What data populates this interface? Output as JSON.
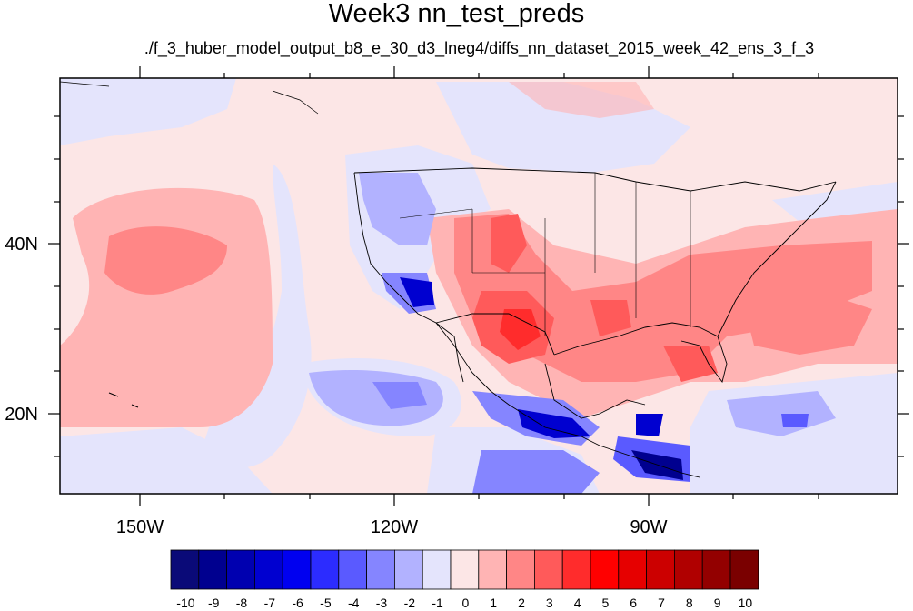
{
  "title": "Week3 nn_test_preds",
  "subtitle": "./f_3_huber_model_output_b8_e_30_d3_lneg4/diffs_nn_dataset_2015_week_42_ens_3_f_3",
  "axes": {
    "lat_labels": [
      "40N",
      "20N"
    ],
    "lon_labels": [
      "150W",
      "120W",
      "90W"
    ]
  },
  "colorbar": {
    "labels": [
      "-10",
      "-9",
      "-8",
      "-7",
      "-6",
      "-5",
      "-4",
      "-3",
      "-2",
      "-1",
      "0",
      "1",
      "2",
      "3",
      "4",
      "5",
      "6",
      "7",
      "8",
      "9",
      "10"
    ],
    "colors": [
      "#0a0a78",
      "#00008f",
      "#0000b0",
      "#0000d0",
      "#0000f0",
      "#2c2cff",
      "#5a5aff",
      "#8585ff",
      "#b2b2ff",
      "#e4e4fc",
      "#fce6e6",
      "#ffb4b4",
      "#ff8686",
      "#ff5a5a",
      "#ff2c2c",
      "#ff0000",
      "#e60000",
      "#cc0000",
      "#b00000",
      "#930000",
      "#7a0000"
    ]
  },
  "map_colors": {
    "light_pink": "#fce6e6",
    "pink": "#ffb4b4",
    "salmon": "#ff8686",
    "red": "#ff5a5a",
    "strong_red": "#ff2c2c",
    "light_blue": "#e4e4fc",
    "blue": "#b2b2ff",
    "mid_blue": "#8585ff",
    "strong_blue": "#5a5aff",
    "deep_blue": "#0000d0",
    "navy": "#00008f"
  }
}
